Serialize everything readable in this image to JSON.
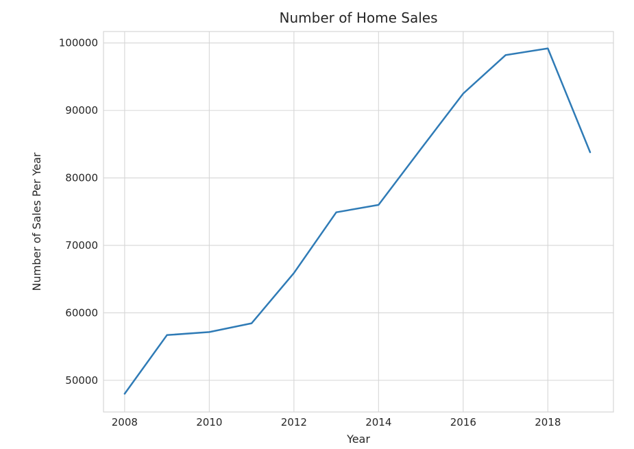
{
  "chart_data": {
    "type": "line",
    "title": "Number of Home Sales",
    "xlabel": "Year",
    "ylabel": "Number of Sales Per Year",
    "x": [
      2008,
      2009,
      2010,
      2011,
      2012,
      2013,
      2014,
      2015,
      2016,
      2017,
      2018,
      2019
    ],
    "series": [
      {
        "values": [
          48000,
          56700,
          57150,
          58450,
          65900,
          74900,
          76000,
          84300,
          92500,
          98200,
          99200,
          83800
        ],
        "color": "#2f7bb6"
      }
    ],
    "xlim": [
      2007.5,
      2019.55
    ],
    "ylim": [
      45300,
      101700
    ],
    "xticks": [
      2008,
      2010,
      2012,
      2014,
      2016,
      2018
    ],
    "yticks": [
      50000,
      60000,
      70000,
      80000,
      90000,
      100000
    ],
    "grid": true
  }
}
